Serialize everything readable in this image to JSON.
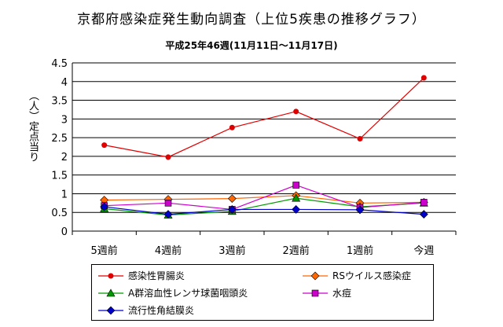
{
  "chart_data": {
    "type": "line",
    "title": "京都府感染症発生動向調査（上位5疾患の推移グラフ）",
    "subtitle": "平成25年46週(11月11日～11月17日)",
    "xlabel": "",
    "ylabel": "（人）定点当り",
    "categories": [
      "5週前",
      "4週前",
      "3週前",
      "2週前",
      "1週前",
      "今週"
    ],
    "ylim": [
      0,
      4.5
    ],
    "yticks": [
      "0",
      "0.5",
      "1",
      "1.5",
      "2",
      "2.5",
      "3",
      "3.5",
      "4",
      "4.5"
    ],
    "grid": true,
    "legend_position": "bottom",
    "series": [
      {
        "name": "感染性胃腸炎",
        "color": "#e00000",
        "marker": "circle",
        "values": [
          2.3,
          1.98,
          2.77,
          3.2,
          2.47,
          4.1
        ]
      },
      {
        "name": "RSウイルス感染症",
        "color": "#ff6600",
        "marker": "diamond",
        "values": [
          0.83,
          0.85,
          0.87,
          0.95,
          0.75,
          0.77
        ]
      },
      {
        "name": "A群溶血性レンサ球菌咽頭炎",
        "color": "#009900",
        "marker": "triangle",
        "values": [
          0.6,
          0.43,
          0.53,
          0.88,
          0.65,
          0.75
        ]
      },
      {
        "name": "水痘",
        "color": "#cc00cc",
        "marker": "square",
        "values": [
          0.68,
          0.75,
          0.58,
          1.23,
          0.63,
          0.77
        ]
      },
      {
        "name": "流行性角結膜炎",
        "color": "#0000cc",
        "marker": "diamond",
        "values": [
          0.65,
          0.45,
          0.58,
          0.58,
          0.57,
          0.45
        ]
      }
    ]
  }
}
